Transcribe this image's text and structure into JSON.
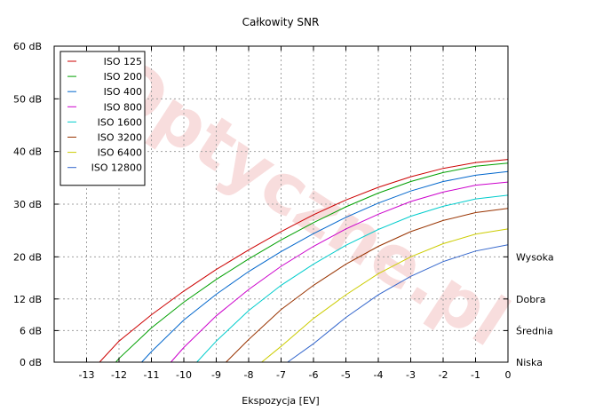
{
  "chart_data": {
    "type": "line",
    "title": "Całkowity SNR",
    "xlabel": "Ekspozycja [EV]",
    "ylabel": "",
    "xlim": [
      -14,
      0
    ],
    "ylim": [
      0,
      60
    ],
    "x_ticks": [
      -13,
      -12,
      -11,
      -10,
      -9,
      -8,
      -7,
      -6,
      -5,
      -4,
      -3,
      -2,
      -1,
      0
    ],
    "y_ticks": [
      {
        "value": 0,
        "label": "0 dB"
      },
      {
        "value": 6,
        "label": "6 dB"
      },
      {
        "value": 12,
        "label": "12 dB"
      },
      {
        "value": 20,
        "label": "20 dB"
      },
      {
        "value": 30,
        "label": "30 dB"
      },
      {
        "value": 40,
        "label": "40 dB"
      },
      {
        "value": 50,
        "label": "50 dB"
      },
      {
        "value": 60,
        "label": "60 dB"
      }
    ],
    "right_ticks": [
      {
        "value": 20,
        "label": "Wysoka"
      },
      {
        "value": 12,
        "label": "Dobra"
      },
      {
        "value": 6,
        "label": "Średnia"
      },
      {
        "value": 0,
        "label": "Niska"
      }
    ],
    "grid": true,
    "legend": "top-left",
    "watermark": "Optyczne.pl",
    "series": [
      {
        "name": "ISO 125",
        "color": "#cc0000",
        "x": [
          -12.6,
          -12,
          -11,
          -10,
          -9,
          -8,
          -7,
          -6,
          -5,
          -4,
          -3,
          -2,
          -1,
          0
        ],
        "y": [
          0,
          4.0,
          9.0,
          13.5,
          17.6,
          21.3,
          24.8,
          28.0,
          30.8,
          33.2,
          35.2,
          36.8,
          37.9,
          38.5
        ]
      },
      {
        "name": "ISO 200",
        "color": "#00a000",
        "x": [
          -12.1,
          -12,
          -11,
          -10,
          -9,
          -8,
          -7,
          -6,
          -5,
          -4,
          -3,
          -2,
          -1,
          0
        ],
        "y": [
          0,
          0.7,
          6.5,
          11.4,
          15.7,
          19.6,
          23.2,
          26.5,
          29.5,
          32.1,
          34.3,
          36.0,
          37.2,
          37.8
        ]
      },
      {
        "name": "ISO 400",
        "color": "#0066cc",
        "x": [
          -11.3,
          -11,
          -10,
          -9,
          -8,
          -7,
          -6,
          -5,
          -4,
          -3,
          -2,
          -1,
          0
        ],
        "y": [
          0,
          2.0,
          8.0,
          12.9,
          17.2,
          21.0,
          24.4,
          27.5,
          30.2,
          32.5,
          34.3,
          35.5,
          36.2
        ]
      },
      {
        "name": "ISO 800",
        "color": "#cc00cc",
        "x": [
          -10.4,
          -10,
          -9,
          -8,
          -7,
          -6,
          -5,
          -4,
          -3,
          -2,
          -1,
          0
        ],
        "y": [
          0,
          2.8,
          8.8,
          13.8,
          18.2,
          22.0,
          25.3,
          28.1,
          30.5,
          32.3,
          33.6,
          34.2
        ]
      },
      {
        "name": "ISO 1600",
        "color": "#00cccc",
        "x": [
          -9.6,
          -9,
          -8,
          -7,
          -6,
          -5,
          -4,
          -3,
          -2,
          -1,
          0
        ],
        "y": [
          0,
          4.0,
          9.8,
          14.6,
          18.6,
          22.2,
          25.2,
          27.7,
          29.6,
          31.0,
          31.7
        ]
      },
      {
        "name": "ISO 3200",
        "color": "#993300",
        "x": [
          -8.7,
          -8,
          -7,
          -6,
          -5,
          -4,
          -3,
          -2,
          -1,
          0
        ],
        "y": [
          0,
          4.3,
          10.0,
          14.6,
          18.6,
          22.0,
          24.8,
          26.9,
          28.4,
          29.2
        ]
      },
      {
        "name": "ISO 6400",
        "color": "#cccc00",
        "x": [
          -7.6,
          -7,
          -6,
          -5,
          -4,
          -3,
          -2,
          -1,
          0
        ],
        "y": [
          0,
          3.0,
          8.3,
          12.8,
          16.8,
          20.0,
          22.5,
          24.3,
          25.3
        ]
      },
      {
        "name": "ISO 12800",
        "color": "#3366cc",
        "x": [
          -6.8,
          -6,
          -5,
          -4,
          -3,
          -2,
          -1,
          0
        ],
        "y": [
          0,
          3.5,
          8.5,
          12.8,
          16.3,
          19.1,
          21.1,
          22.3
        ]
      }
    ]
  }
}
